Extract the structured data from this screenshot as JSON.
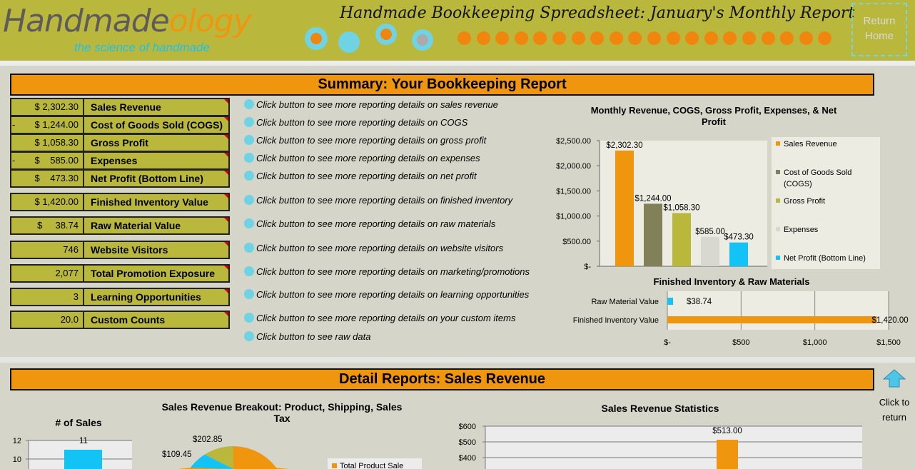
{
  "header": {
    "logo_main": "Handmade",
    "logo_accent": "ology",
    "tagline": "the science of handmade",
    "title": "Handmade Bookkeeping Spreadsheet:  January's Monthly Report",
    "return_home": [
      "Return",
      "Home"
    ]
  },
  "summary": {
    "banner": "Summary:  Your Bookkeeping Report",
    "rows": [
      {
        "sign": "",
        "value": "$ 2,302.30",
        "label": "Sales Revenue"
      },
      {
        "sign": "-",
        "value": "$ 1,244.00",
        "label": "Cost of Goods Sold (COGS)"
      },
      {
        "sign": "",
        "value": "$ 1,058.30",
        "label": "Gross Profit"
      },
      {
        "sign": "-",
        "value": "$    585.00",
        "label": "Expenses"
      },
      {
        "sign": "",
        "value": "$    473.30",
        "label": "Net Profit (Bottom Line)"
      },
      {
        "sign": "",
        "value": "$ 1,420.00",
        "label": "Finished Inventory Value"
      },
      {
        "sign": "",
        "value": "$     38.74",
        "label": "Raw Material Value"
      },
      {
        "sign": "",
        "value": "746",
        "label": "Website Visitors"
      },
      {
        "sign": "",
        "value": "2,077",
        "label": "Total Promotion Exposure"
      },
      {
        "sign": "",
        "value": "3",
        "label": "Learning Opportunities"
      },
      {
        "sign": "",
        "value": "20.0",
        "label": "Custom Counts"
      }
    ],
    "links": [
      "Click button to see more reporting details on sales revenue",
      "Click button to see more reporting details on COGS",
      "Click button to see more reporting details on gross profit",
      "Click button to see more reporting details on expenses",
      "Click button to see more reporting details on net profit",
      "Click button to see more reporting details on finished inventory",
      "Click button to see more reporting details on raw materials",
      "Click button to see more reporting details on website visitors",
      "Click button to see more reporting details on marketing/promotions",
      "Click button to see more reporting details on learning opportunities",
      "Click button to see more reporting details on your custom items",
      "Click button to see raw data"
    ]
  },
  "detail": {
    "banner": "Detail Reports:  Sales Revenue",
    "return_text": [
      "Click to",
      "return"
    ]
  },
  "colors": {
    "olive": "#b9b83c",
    "orange": "#f0960e",
    "cyan": "#13c3f5",
    "gray_olive": "#818058",
    "light_gray": "#d8d8d0"
  },
  "chart_data": [
    {
      "type": "bar",
      "title": "Monthly Revenue, COGS, Gross Profit, Expenses, & Net Profit",
      "categories": [
        "Sales Revenue",
        "Cost of Goods Sold (COGS)",
        "Gross Profit",
        "Expenses",
        "Net Profit (Bottom Line)"
      ],
      "values": [
        2302.3,
        1244.0,
        1058.3,
        585.0,
        473.3
      ],
      "data_labels": [
        "$2,302.30",
        "$1,244.00",
        "$1,058.30",
        "$585.00",
        "$473.30"
      ],
      "colors": [
        "#f0960e",
        "#818058",
        "#b9b83c",
        "#d8d8d0",
        "#13c3f5"
      ],
      "ylim": [
        0,
        2500
      ],
      "yticks": [
        "$-",
        "$500.00",
        "$1,000.00",
        "$1,500.00",
        "$2,000.00",
        "$2,500.00"
      ],
      "legend": "right"
    },
    {
      "type": "bar",
      "orientation": "horizontal",
      "title": "Finished Inventory & Raw Materials",
      "categories": [
        "Raw Material Value",
        "Finished Inventory Value"
      ],
      "values": [
        38.74,
        1420.0
      ],
      "data_labels": [
        "$38.74",
        "$1,420.00"
      ],
      "colors": [
        "#13c3f5",
        "#f0960e"
      ],
      "xlim": [
        0,
        1500
      ],
      "xticks": [
        "$-",
        "$500",
        "$1,000",
        "$1,500"
      ],
      "grid": true
    },
    {
      "type": "bar",
      "title": "# of Sales",
      "values": [
        11
      ],
      "data_labels": [
        "11"
      ],
      "yticks": [
        "10",
        "12"
      ],
      "colors": [
        "#13c3f5"
      ]
    },
    {
      "type": "pie",
      "title": "Sales Revenue Breakout:  Product, Shipping, Sales Tax",
      "data_labels": [
        "$202.85",
        "$109.45"
      ],
      "legend": [
        "Total Product Sale"
      ]
    },
    {
      "type": "bar",
      "title": "Sales Revenue Statistics",
      "data_labels": [
        "$513.00"
      ],
      "values": [
        513.0
      ],
      "yticks": [
        "$400",
        "$500",
        "$600"
      ],
      "colors": [
        "#f0960e"
      ]
    }
  ]
}
